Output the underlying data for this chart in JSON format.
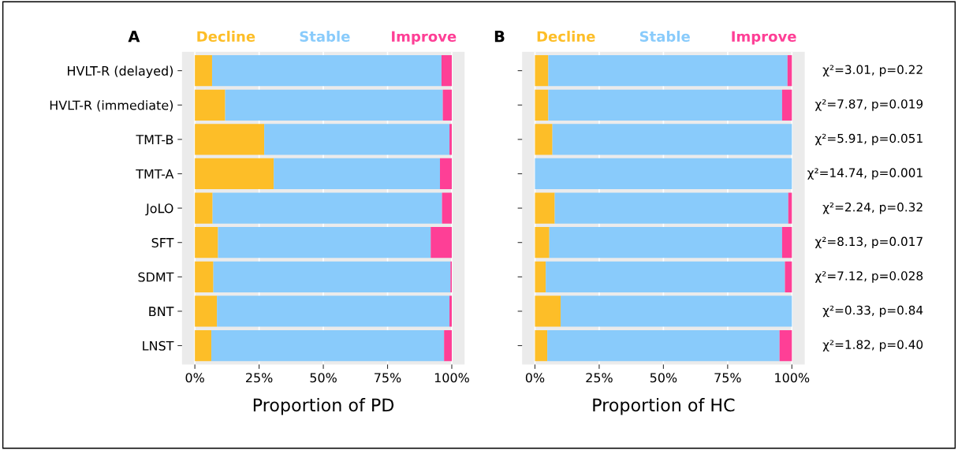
{
  "chart_data": [
    {
      "type": "bar",
      "title": "A",
      "orientation": "horizontal",
      "stacked": true,
      "legend": "top",
      "grid": "x",
      "xlabel": "Proportion of PD",
      "categories": [
        "HVLT-R (delayed)",
        "HVLT-R (immediate)",
        "TMT-B",
        "TMT-A",
        "JoLO",
        "SFT",
        "SDMT",
        "BNT",
        "LNST"
      ],
      "series": [
        {
          "name": "Decline",
          "color": "#fdbe28",
          "values": [
            6.7,
            11.8,
            27.0,
            30.7,
            6.9,
            9.0,
            7.2,
            8.6,
            6.4
          ]
        },
        {
          "name": "Stable",
          "color": "#89cbfb",
          "values": [
            89.3,
            84.7,
            72.1,
            64.7,
            89.3,
            82.8,
            92.3,
            90.5,
            90.6
          ]
        },
        {
          "name": "Improve",
          "color": "#fe3f96",
          "values": [
            4.0,
            3.5,
            0.9,
            4.6,
            3.8,
            8.2,
            0.5,
            0.9,
            3.0
          ]
        }
      ],
      "xlim": [
        -5,
        105
      ],
      "xticks": [
        {
          "value": 0,
          "label": "0%"
        },
        {
          "value": 25,
          "label": "25%"
        },
        {
          "value": 50,
          "label": "50%"
        },
        {
          "value": 75,
          "label": "75%"
        },
        {
          "value": 100,
          "label": "100%"
        }
      ]
    },
    {
      "type": "bar",
      "title": "B",
      "orientation": "horizontal",
      "stacked": true,
      "legend": "top",
      "grid": "x",
      "xlabel": "Proportion of HC",
      "tick_labels": "x",
      "categories": [
        null,
        null,
        null,
        null,
        null,
        null,
        null,
        null,
        null
      ],
      "series": [
        {
          "name": "Decline",
          "color": "#fdbe28",
          "values": [
            5.2,
            5.2,
            6.8,
            0,
            7.7,
            5.6,
            4.2,
            10.0,
            4.8
          ]
        },
        {
          "name": "Stable",
          "color": "#89cbfb",
          "values": [
            93.1,
            91.0,
            93.2,
            100,
            90.9,
            90.6,
            93.1,
            90.0,
            90.4
          ]
        },
        {
          "name": "Improve",
          "color": "#fe3f96",
          "values": [
            1.7,
            3.8,
            0,
            0,
            1.4,
            3.8,
            2.7,
            0,
            4.8
          ]
        }
      ],
      "xlim": [
        -5,
        105
      ],
      "xticks": [
        {
          "value": 0,
          "label": "0%"
        },
        {
          "value": 25,
          "label": "25%"
        },
        {
          "value": 50,
          "label": "50%"
        },
        {
          "value": 75,
          "label": "75%"
        },
        {
          "value": 100,
          "label": "100%"
        }
      ],
      "annotations": [
        "χ²=3.01, p=0.22",
        "χ²=7.87, p=0.019",
        "χ²=5.91, p=0.051",
        "χ²=14.74, p=0.001",
        "χ²=2.24, p=0.32",
        "χ²=8.13, p=0.017",
        "χ²=7.12, p=0.028",
        "χ²=0.33, p=0.84",
        "χ²=1.82, p=0.40"
      ]
    }
  ]
}
